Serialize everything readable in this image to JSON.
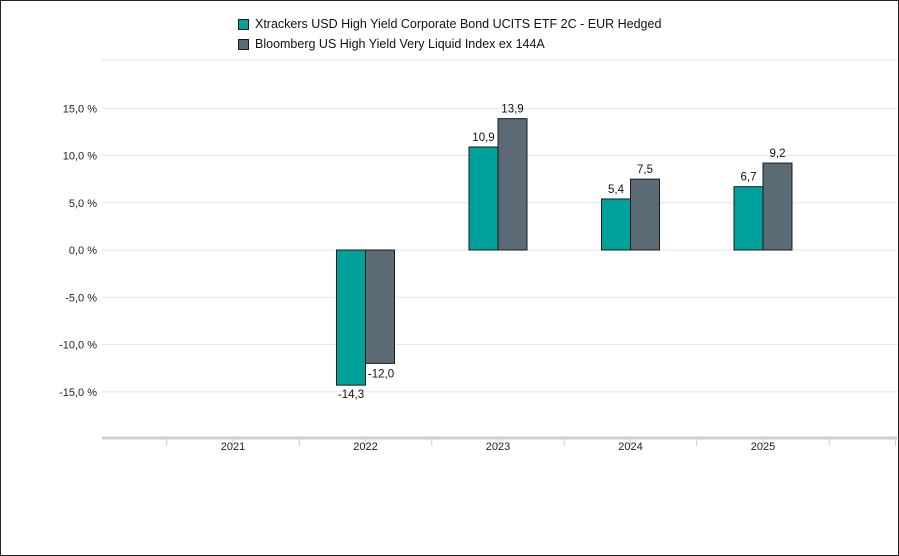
{
  "chart_data": {
    "type": "bar",
    "categories": [
      "2021",
      "2022",
      "2023",
      "2024",
      "2025"
    ],
    "series": [
      {
        "name": "Xtrackers USD High Yield Corporate Bond UCITS ETF 2C - EUR Hedged",
        "color": "#00a19a",
        "values": [
          null,
          -14.3,
          10.9,
          5.4,
          6.7
        ],
        "labels": [
          "",
          "-14,3",
          "10,9",
          "5,4",
          "6,7"
        ]
      },
      {
        "name": "Bloomberg US High Yield Very Liquid Index ex 144A",
        "color": "#5b6b76",
        "values": [
          null,
          -12.0,
          13.9,
          7.5,
          9.2
        ],
        "labels": [
          "",
          "-12,0",
          "13,9",
          "7,5",
          "9,2"
        ]
      }
    ],
    "yticks": [
      15,
      10,
      5,
      0,
      -5,
      -10,
      -15
    ],
    "ytick_labels": [
      "15,0 %",
      "10,0 %",
      "5,0 %",
      "0,0 %",
      "-5,0 %",
      "-10,0 %",
      "-15,0 %"
    ],
    "ylim": [
      -19,
      19
    ],
    "grid": true,
    "legend": "top-center"
  }
}
